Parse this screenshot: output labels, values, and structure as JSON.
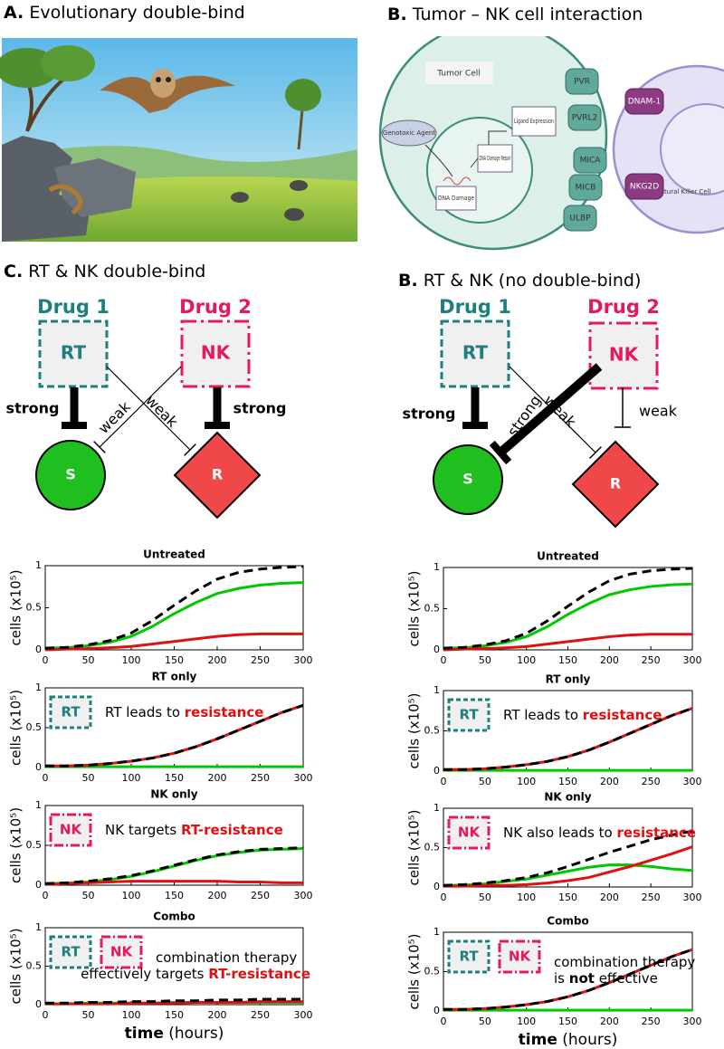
{
  "panel_a": {
    "letter": "A.",
    "text": "Evolutionary double-bind"
  },
  "panel_b": {
    "letter": "B.",
    "text": "Tumor – NK cell interaction",
    "tumor_cell": "Tumor Cell",
    "genotoxic": "Genotoxic Agent",
    "dna_damage": "DNA Damage",
    "repair": "DNA Damage Repair",
    "ligand": "Ligand Expression",
    "receptors": [
      "PVR",
      "PVRL2",
      "MICA",
      "MICB",
      "ULBP"
    ],
    "nk_receptors": [
      "DNAM-1",
      "NKG2D"
    ],
    "nk_cell": "Natural Killer Cell"
  },
  "panel_c": {
    "letter": "C.",
    "text": "RT & NK double-bind",
    "drug1": "Drug 1",
    "drug2": "Drug 2",
    "box1": "RT",
    "box2": "NK",
    "rt_s": "strong",
    "rt_r": "weak",
    "nk_s": "weak",
    "nk_r": "strong",
    "s": "S",
    "r": "R"
  },
  "panel_d": {
    "letter": "B.",
    "text": "RT & NK (no double-bind)",
    "drug1": "Drug 1",
    "drug2": "Drug 2",
    "box1": "RT",
    "box2": "NK",
    "rt_s": "strong",
    "rt_r": "weak",
    "nk_s": "strong",
    "nk_r": "weak",
    "s": "S",
    "r": "R"
  },
  "chart_data": [
    {
      "type": "line",
      "title": "Untreated",
      "ylabel": "cells (x10⁵)",
      "x": [
        0,
        25,
        50,
        75,
        100,
        125,
        150,
        175,
        200,
        225,
        250,
        275,
        300
      ],
      "xlim": [
        0,
        300
      ],
      "ylim": [
        0,
        1
      ],
      "xticks": [
        0,
        50,
        100,
        150,
        200,
        250,
        300
      ],
      "yticks": [
        0,
        0.5,
        1
      ],
      "series": [
        {
          "color": "#00c800",
          "values": [
            0.02,
            0.025,
            0.05,
            0.09,
            0.16,
            0.28,
            0.43,
            0.56,
            0.67,
            0.73,
            0.77,
            0.79,
            0.8
          ]
        },
        {
          "color": "#e01010",
          "values": [
            0,
            0.01,
            0.015,
            0.025,
            0.04,
            0.07,
            0.1,
            0.13,
            0.16,
            0.18,
            0.19,
            0.19,
            0.19
          ]
        },
        {
          "color": "#000000",
          "dash": true,
          "values": [
            0.02,
            0.03,
            0.06,
            0.11,
            0.2,
            0.35,
            0.53,
            0.7,
            0.84,
            0.92,
            0.96,
            0.98,
            0.99
          ]
        }
      ]
    },
    {
      "type": "line",
      "title": "RT only",
      "ylabel": "cells (x10⁵)",
      "x": [
        0,
        25,
        50,
        75,
        100,
        125,
        150,
        175,
        200,
        225,
        250,
        275,
        300
      ],
      "xlim": [
        0,
        300
      ],
      "ylim": [
        0,
        1
      ],
      "xticks": [
        0,
        50,
        100,
        150,
        200,
        250,
        300
      ],
      "yticks": [
        0,
        0.5,
        1
      ],
      "boxes": [
        {
          "label": "RT",
          "color": "#1e7f7f",
          "dash": "5 3"
        }
      ],
      "note": [
        [
          {
            "text": "RT leads to "
          },
          {
            "text": "resistance",
            "color": "#e01010",
            "bold": true
          }
        ]
      ],
      "series": [
        {
          "color": "#00c800",
          "values": [
            0.01,
            0.01,
            0.01,
            0.01,
            0.01,
            0.01,
            0.01,
            0.01,
            0.01,
            0.01,
            0.01,
            0.01,
            0.01
          ]
        },
        {
          "color": "#e01010",
          "values": [
            0.02,
            0.02,
            0.03,
            0.05,
            0.08,
            0.12,
            0.18,
            0.26,
            0.36,
            0.47,
            0.58,
            0.69,
            0.78
          ]
        },
        {
          "color": "#000000",
          "dash": true,
          "values": [
            0.02,
            0.02,
            0.03,
            0.05,
            0.08,
            0.12,
            0.18,
            0.26,
            0.36,
            0.47,
            0.58,
            0.69,
            0.78
          ]
        }
      ]
    },
    {
      "type": "line",
      "title": "NK only",
      "ylabel": "cells (x10⁵)",
      "x": [
        0,
        25,
        50,
        75,
        100,
        125,
        150,
        175,
        200,
        225,
        250,
        275,
        300
      ],
      "xlim": [
        0,
        300
      ],
      "ylim": [
        0,
        1
      ],
      "xticks": [
        0,
        50,
        100,
        150,
        200,
        250,
        300
      ],
      "yticks": [
        0,
        0.5,
        1
      ],
      "boxes": [
        {
          "label": "NK",
          "color": "#e6195a",
          "dash": "10 3 2 3"
        }
      ],
      "note": [
        [
          {
            "text": "NK targets "
          },
          {
            "text": "RT-resistance",
            "color": "#e01010",
            "bold": true
          }
        ]
      ],
      "series": [
        {
          "color": "#00c800",
          "values": [
            0.02,
            0.025,
            0.04,
            0.07,
            0.11,
            0.17,
            0.24,
            0.31,
            0.37,
            0.41,
            0.44,
            0.45,
            0.46
          ]
        },
        {
          "color": "#e01010",
          "values": [
            0.01,
            0.02,
            0.03,
            0.04,
            0.05,
            0.05,
            0.05,
            0.05,
            0.05,
            0.04,
            0.04,
            0.03,
            0.03
          ]
        },
        {
          "color": "#000000",
          "dash": true,
          "values": [
            0.02,
            0.03,
            0.05,
            0.08,
            0.12,
            0.18,
            0.25,
            0.32,
            0.38,
            0.42,
            0.45,
            0.46,
            0.47
          ]
        }
      ]
    },
    {
      "type": "line",
      "title": "Combo",
      "ylabel": "cells (x10⁵)",
      "xlabel_bold": "time",
      "xlabel": "(hours)",
      "x": [
        0,
        25,
        50,
        75,
        100,
        125,
        150,
        175,
        200,
        225,
        250,
        275,
        300
      ],
      "xlim": [
        0,
        300
      ],
      "ylim": [
        0,
        1
      ],
      "xticks": [
        0,
        50,
        100,
        150,
        200,
        250,
        300
      ],
      "yticks": [
        0,
        0.5,
        1
      ],
      "boxes": [
        {
          "label": "RT",
          "color": "#1e7f7f",
          "dash": "5 3"
        },
        {
          "label": "NK",
          "color": "#e6195a",
          "dash": "10 3 2 3"
        }
      ],
      "note": [
        [
          {
            "text": "combination therapy"
          }
        ],
        [
          {
            "text": "effectively targets "
          },
          {
            "text": "RT-resistance",
            "color": "#e01010",
            "bold": true
          }
        ]
      ],
      "series": [
        {
          "color": "#00c800",
          "values": [
            0.01,
            0.01,
            0.02,
            0.02,
            0.02,
            0.02,
            0.03,
            0.03,
            0.03,
            0.03,
            0.03,
            0.03,
            0.03
          ]
        },
        {
          "color": "#e01010",
          "values": [
            0.01,
            0.01,
            0.01,
            0.01,
            0.02,
            0.02,
            0.02,
            0.03,
            0.03,
            0.03,
            0.04,
            0.04,
            0.04
          ]
        },
        {
          "color": "#000000",
          "dash": true,
          "values": [
            0.02,
            0.02,
            0.03,
            0.03,
            0.04,
            0.04,
            0.05,
            0.05,
            0.06,
            0.06,
            0.07,
            0.07,
            0.07
          ]
        }
      ]
    },
    {
      "type": "line",
      "title": "Untreated",
      "ylabel": "cells (x10⁵)",
      "x": [
        0,
        25,
        50,
        75,
        100,
        125,
        150,
        175,
        200,
        225,
        250,
        275,
        300
      ],
      "xlim": [
        0,
        300
      ],
      "ylim": [
        0,
        1
      ],
      "xticks": [
        0,
        50,
        100,
        150,
        200,
        250,
        300
      ],
      "yticks": [
        0,
        0.5,
        1
      ],
      "series": [
        {
          "color": "#00c800",
          "values": [
            0.02,
            0.025,
            0.05,
            0.09,
            0.16,
            0.28,
            0.43,
            0.56,
            0.67,
            0.73,
            0.77,
            0.79,
            0.8
          ]
        },
        {
          "color": "#e01010",
          "values": [
            0,
            0.01,
            0.015,
            0.025,
            0.04,
            0.07,
            0.1,
            0.13,
            0.16,
            0.18,
            0.19,
            0.19,
            0.19
          ]
        },
        {
          "color": "#000000",
          "dash": true,
          "values": [
            0.02,
            0.03,
            0.06,
            0.11,
            0.2,
            0.35,
            0.53,
            0.7,
            0.84,
            0.92,
            0.96,
            0.98,
            0.99
          ]
        }
      ]
    },
    {
      "type": "line",
      "title": "RT only",
      "ylabel": "cells (x10⁵)",
      "x": [
        0,
        25,
        50,
        75,
        100,
        125,
        150,
        175,
        200,
        225,
        250,
        275,
        300
      ],
      "xlim": [
        0,
        300
      ],
      "ylim": [
        0,
        1
      ],
      "xticks": [
        0,
        50,
        100,
        150,
        200,
        250,
        300
      ],
      "yticks": [
        0,
        0.5,
        1
      ],
      "boxes": [
        {
          "label": "RT",
          "color": "#1e7f7f",
          "dash": "5 3"
        }
      ],
      "note": [
        [
          {
            "text": "RT leads to "
          },
          {
            "text": "resistance",
            "color": "#e01010",
            "bold": true
          }
        ]
      ],
      "series": [
        {
          "color": "#00c800",
          "values": [
            0.01,
            0.01,
            0.01,
            0.01,
            0.01,
            0.01,
            0.01,
            0.01,
            0.01,
            0.01,
            0.01,
            0.01,
            0.01
          ]
        },
        {
          "color": "#e01010",
          "values": [
            0.02,
            0.02,
            0.03,
            0.05,
            0.08,
            0.12,
            0.18,
            0.26,
            0.36,
            0.47,
            0.58,
            0.69,
            0.78
          ]
        },
        {
          "color": "#000000",
          "dash": true,
          "values": [
            0.02,
            0.02,
            0.03,
            0.05,
            0.08,
            0.12,
            0.18,
            0.26,
            0.36,
            0.47,
            0.58,
            0.69,
            0.78
          ]
        }
      ]
    },
    {
      "type": "line",
      "title": "NK only",
      "ylabel": "cells (x10⁵)",
      "x": [
        0,
        25,
        50,
        75,
        100,
        125,
        150,
        175,
        200,
        225,
        250,
        275,
        300
      ],
      "xlim": [
        0,
        300
      ],
      "ylim": [
        0,
        1
      ],
      "xticks": [
        0,
        50,
        100,
        150,
        200,
        250,
        300
      ],
      "yticks": [
        0,
        0.5,
        1
      ],
      "boxes": [
        {
          "label": "NK",
          "color": "#e6195a",
          "dash": "10 3 2 3"
        }
      ],
      "note": [
        [
          {
            "text": "NK also leads to "
          },
          {
            "text": "resistance",
            "color": "#e01010",
            "bold": true
          }
        ]
      ],
      "series": [
        {
          "color": "#00c800",
          "values": [
            0.02,
            0.025,
            0.04,
            0.07,
            0.1,
            0.15,
            0.2,
            0.25,
            0.28,
            0.28,
            0.26,
            0.23,
            0.21
          ]
        },
        {
          "color": "#e01010",
          "values": [
            0.01,
            0.01,
            0.02,
            0.02,
            0.03,
            0.05,
            0.08,
            0.12,
            0.19,
            0.26,
            0.34,
            0.42,
            0.51
          ]
        },
        {
          "color": "#000000",
          "dash": true,
          "values": [
            0.02,
            0.03,
            0.05,
            0.08,
            0.12,
            0.18,
            0.26,
            0.35,
            0.44,
            0.52,
            0.6,
            0.66,
            0.71
          ]
        }
      ]
    },
    {
      "type": "line",
      "title": "Combo",
      "ylabel": "cells (x10⁵)",
      "xlabel_bold": "time",
      "xlabel": "(hours)",
      "x": [
        0,
        25,
        50,
        75,
        100,
        125,
        150,
        175,
        200,
        225,
        250,
        275,
        300
      ],
      "xlim": [
        0,
        300
      ],
      "ylim": [
        0,
        1
      ],
      "xticks": [
        0,
        50,
        100,
        150,
        200,
        250,
        300
      ],
      "yticks": [
        0,
        0.5,
        1
      ],
      "boxes": [
        {
          "label": "RT",
          "color": "#1e7f7f",
          "dash": "5 3"
        },
        {
          "label": "NK",
          "color": "#e6195a",
          "dash": "10 3 2 3"
        }
      ],
      "note": [
        [
          {
            "text": "combination therapy"
          }
        ],
        [
          {
            "text": "is "
          },
          {
            "text": "not",
            "bold": true
          },
          {
            "text": " effective"
          }
        ]
      ],
      "series": [
        {
          "color": "#00c800",
          "values": [
            0.01,
            0.01,
            0.01,
            0.01,
            0.01,
            0.01,
            0.01,
            0.01,
            0.01,
            0.01,
            0.01,
            0.01,
            0.01
          ]
        },
        {
          "color": "#e01010",
          "values": [
            0.02,
            0.02,
            0.03,
            0.05,
            0.08,
            0.12,
            0.18,
            0.26,
            0.36,
            0.47,
            0.58,
            0.69,
            0.78
          ]
        },
        {
          "color": "#000000",
          "dash": true,
          "values": [
            0.02,
            0.02,
            0.03,
            0.05,
            0.08,
            0.12,
            0.18,
            0.26,
            0.36,
            0.47,
            0.58,
            0.69,
            0.78
          ]
        }
      ]
    }
  ]
}
